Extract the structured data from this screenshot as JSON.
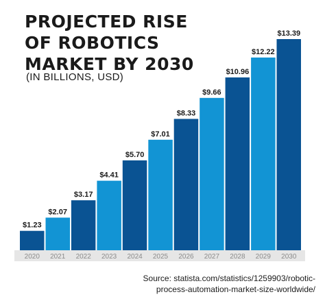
{
  "chart_data": {
    "type": "bar",
    "title_lines": [
      "PROJECTED RISE",
      "OF ROBOTICS",
      "MARKET BY 2030"
    ],
    "subtitle": "(IN BILLIONS, USD)",
    "categories": [
      "2020",
      "2021",
      "2022",
      "2023",
      "2024",
      "2025",
      "2026",
      "2027",
      "2028",
      "2029",
      "2030"
    ],
    "values": [
      1.23,
      2.07,
      3.17,
      4.41,
      5.7,
      7.01,
      8.33,
      9.66,
      10.96,
      12.22,
      13.39
    ],
    "value_labels": [
      "$1.23",
      "$2.07",
      "$3.17",
      "$4.41",
      "$5.70",
      "$7.01",
      "$8.33",
      "$9.66",
      "$10.96",
      "$12.22",
      "$13.39"
    ],
    "xlabel": "",
    "ylabel": "",
    "ylim": [
      0,
      13.39
    ],
    "grid": false,
    "legend": "none",
    "colors": [
      "#0a5393",
      "#1294d4"
    ]
  },
  "source_lines": [
    "Source: statista.com/statistics/1259903/robotic-",
    "process-automation-market-size-worldwide/"
  ]
}
